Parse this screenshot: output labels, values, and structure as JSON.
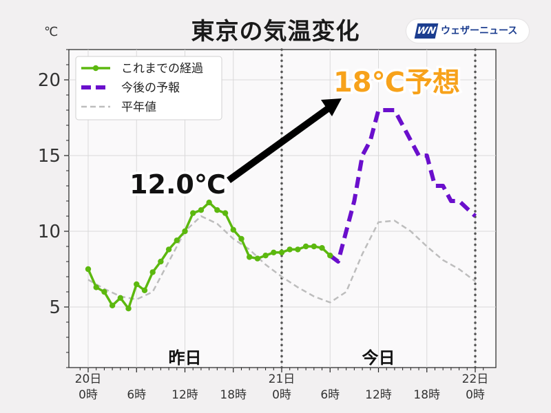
{
  "title": "東京の気温変化",
  "brand": {
    "mark": "WN",
    "name": "ウェザーニュース"
  },
  "unit": "℃",
  "colors": {
    "observed": "#5cb80f",
    "forecast": "#6a0fcc",
    "normal": "#bdbdbd",
    "highlight": "#f7a21b",
    "arrow": "#000000"
  },
  "chart_data": {
    "type": "line",
    "title": "東京の気温変化",
    "ylabel": "℃",
    "xlim": [
      0,
      48
    ],
    "ylim": [
      1,
      22
    ],
    "yticks": [
      5,
      10,
      15,
      20
    ],
    "x_ticks": [
      {
        "x": 0,
        "label": [
          "20日",
          "0時"
        ]
      },
      {
        "x": 6,
        "label": [
          "",
          "6時"
        ]
      },
      {
        "x": 12,
        "label": [
          "",
          "12時"
        ]
      },
      {
        "x": 18,
        "label": [
          "",
          "18時"
        ]
      },
      {
        "x": 24,
        "label": [
          "21日",
          "0時"
        ]
      },
      {
        "x": 30,
        "label": [
          "",
          "6時"
        ]
      },
      {
        "x": 36,
        "label": [
          "",
          "12時"
        ]
      },
      {
        "x": 42,
        "label": [
          "",
          "18時"
        ]
      },
      {
        "x": 48,
        "label": [
          "22日",
          "0時"
        ]
      }
    ],
    "minor_ticks_every": 1,
    "grid": true,
    "legend_position": "top-left",
    "day_dividers": [
      24,
      48
    ],
    "day_labels": [
      {
        "text": "昨日",
        "x": 12
      },
      {
        "text": "今日",
        "x": 36
      }
    ],
    "series": [
      {
        "name": "これまでの経過",
        "style": "line-markers",
        "color": "#5cb80f",
        "x": [
          0,
          1,
          2,
          3,
          4,
          5,
          6,
          7,
          8,
          9,
          10,
          11,
          12,
          13,
          14,
          15,
          16,
          17,
          18,
          19,
          20,
          21,
          22,
          23,
          24,
          25,
          26,
          27,
          28,
          29,
          30
        ],
        "y": [
          7.5,
          6.3,
          6.0,
          5.1,
          5.6,
          4.9,
          6.5,
          6.1,
          7.3,
          8.0,
          8.8,
          9.4,
          10.0,
          11.2,
          11.4,
          11.9,
          11.4,
          11.2,
          10.1,
          9.5,
          8.3,
          8.2,
          8.4,
          8.6,
          8.6,
          8.8,
          8.8,
          9.0,
          9.0,
          8.9,
          8.4
        ]
      },
      {
        "name": "今後の予報",
        "style": "dashed-thick",
        "color": "#6a0fcc",
        "x": [
          30,
          31,
          32,
          33,
          34,
          35,
          36,
          37,
          38,
          39,
          40,
          41,
          42,
          43,
          44,
          45,
          46,
          47,
          48
        ],
        "y": [
          8.4,
          8.0,
          10.0,
          12.0,
          15.0,
          16.0,
          18.0,
          18.0,
          18.0,
          17.0,
          16.0,
          15.0,
          15.0,
          13.0,
          13.0,
          12.0,
          12.0,
          11.5,
          11.0
        ]
      },
      {
        "name": "平年値",
        "style": "dashed-thin",
        "color": "#bdbdbd",
        "x": [
          0,
          2,
          4,
          6,
          8,
          10,
          12,
          14,
          16,
          18,
          20,
          22,
          24,
          26,
          28,
          30,
          32,
          34,
          36,
          38,
          40,
          42,
          44,
          46,
          48
        ],
        "y": [
          6.8,
          6.2,
          5.7,
          5.5,
          6.0,
          8.0,
          10.0,
          11.0,
          10.5,
          9.5,
          8.8,
          7.8,
          7.0,
          6.3,
          5.7,
          5.3,
          6.0,
          8.5,
          10.6,
          10.7,
          10.0,
          9.0,
          8.1,
          7.5,
          6.7
        ]
      }
    ],
    "annotations": [
      {
        "text": "12.0℃",
        "arrow": true
      },
      {
        "text": "18℃予想"
      }
    ]
  }
}
